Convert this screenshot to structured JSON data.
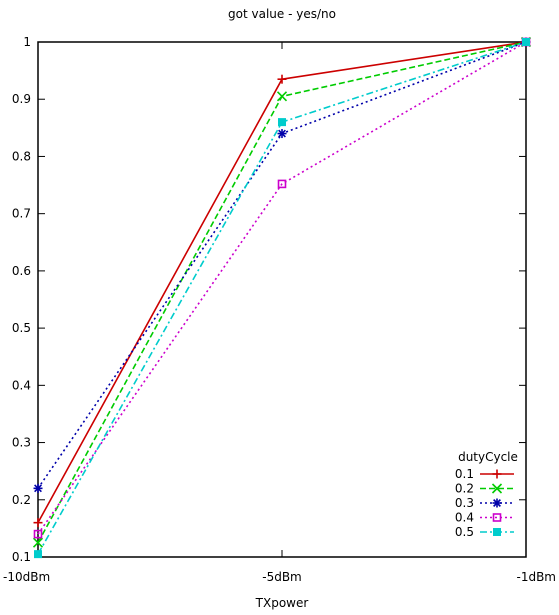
{
  "chart_data": {
    "type": "line",
    "title": "got value - yes/no",
    "xlabel": "TXpower",
    "ylabel": "",
    "categories": [
      "-10dBm",
      "-5dBm",
      "-1dBm"
    ],
    "ylim": [
      0.1,
      1.0
    ],
    "yticks": [
      "0.1",
      "0.2",
      "0.3",
      "0.4",
      "0.5",
      "0.6",
      "0.7",
      "0.8",
      "0.9",
      "1"
    ],
    "grid": false,
    "legend": {
      "title": "dutyCycle",
      "placement": "bottom-right"
    },
    "series": [
      {
        "name": "0.1",
        "values": [
          0.16,
          0.935,
          1.0
        ],
        "color": "#cc0000",
        "dash": "solid",
        "marker": "plus"
      },
      {
        "name": "0.2",
        "values": [
          0.125,
          0.905,
          1.0
        ],
        "color": "#00cc00",
        "dash": "dashed",
        "marker": "cross"
      },
      {
        "name": "0.3",
        "values": [
          0.22,
          0.84,
          1.0
        ],
        "color": "#0000aa",
        "dash": "dotted",
        "marker": "star"
      },
      {
        "name": "0.4",
        "values": [
          0.14,
          0.752,
          1.0
        ],
        "color": "#cc00cc",
        "dash": "dotted",
        "marker": "square-open"
      },
      {
        "name": "0.5",
        "values": [
          0.105,
          0.86,
          1.0
        ],
        "color": "#00cccc",
        "dash": "dashdot",
        "marker": "square-filled"
      }
    ]
  }
}
